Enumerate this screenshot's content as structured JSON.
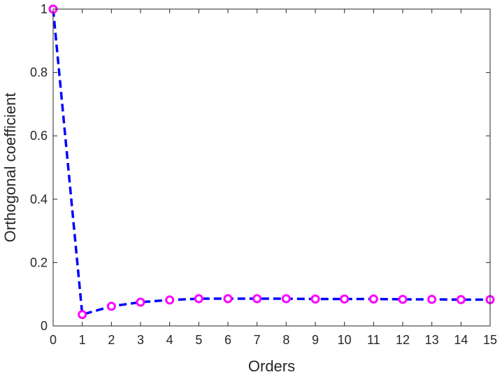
{
  "chart_data": {
    "type": "line",
    "title": "",
    "xlabel": "Orders",
    "ylabel": "Orthogonal coefficient",
    "xlim": [
      0,
      15
    ],
    "ylim": [
      0,
      1
    ],
    "x_ticks": [
      "0",
      "1",
      "2",
      "3",
      "4",
      "5",
      "6",
      "7",
      "8",
      "9",
      "10",
      "11",
      "12",
      "13",
      "14",
      "15"
    ],
    "y_ticks": [
      "0",
      "0.2",
      "0.4",
      "0.6",
      "0.8",
      "1"
    ],
    "grid": false,
    "legend": "none",
    "series": [
      {
        "x": [
          0,
          1,
          2,
          3,
          4,
          5,
          6,
          7,
          8,
          9,
          10,
          11,
          12,
          13,
          14,
          15
        ],
        "values": [
          1.0,
          0.036,
          0.062,
          0.075,
          0.082,
          0.086,
          0.086,
          0.086,
          0.086,
          0.085,
          0.085,
          0.085,
          0.084,
          0.084,
          0.083,
          0.083
        ],
        "line_style": "dashed",
        "line_color": "#0000ff",
        "marker": "circle",
        "marker_color": "#ff00ff"
      }
    ]
  }
}
